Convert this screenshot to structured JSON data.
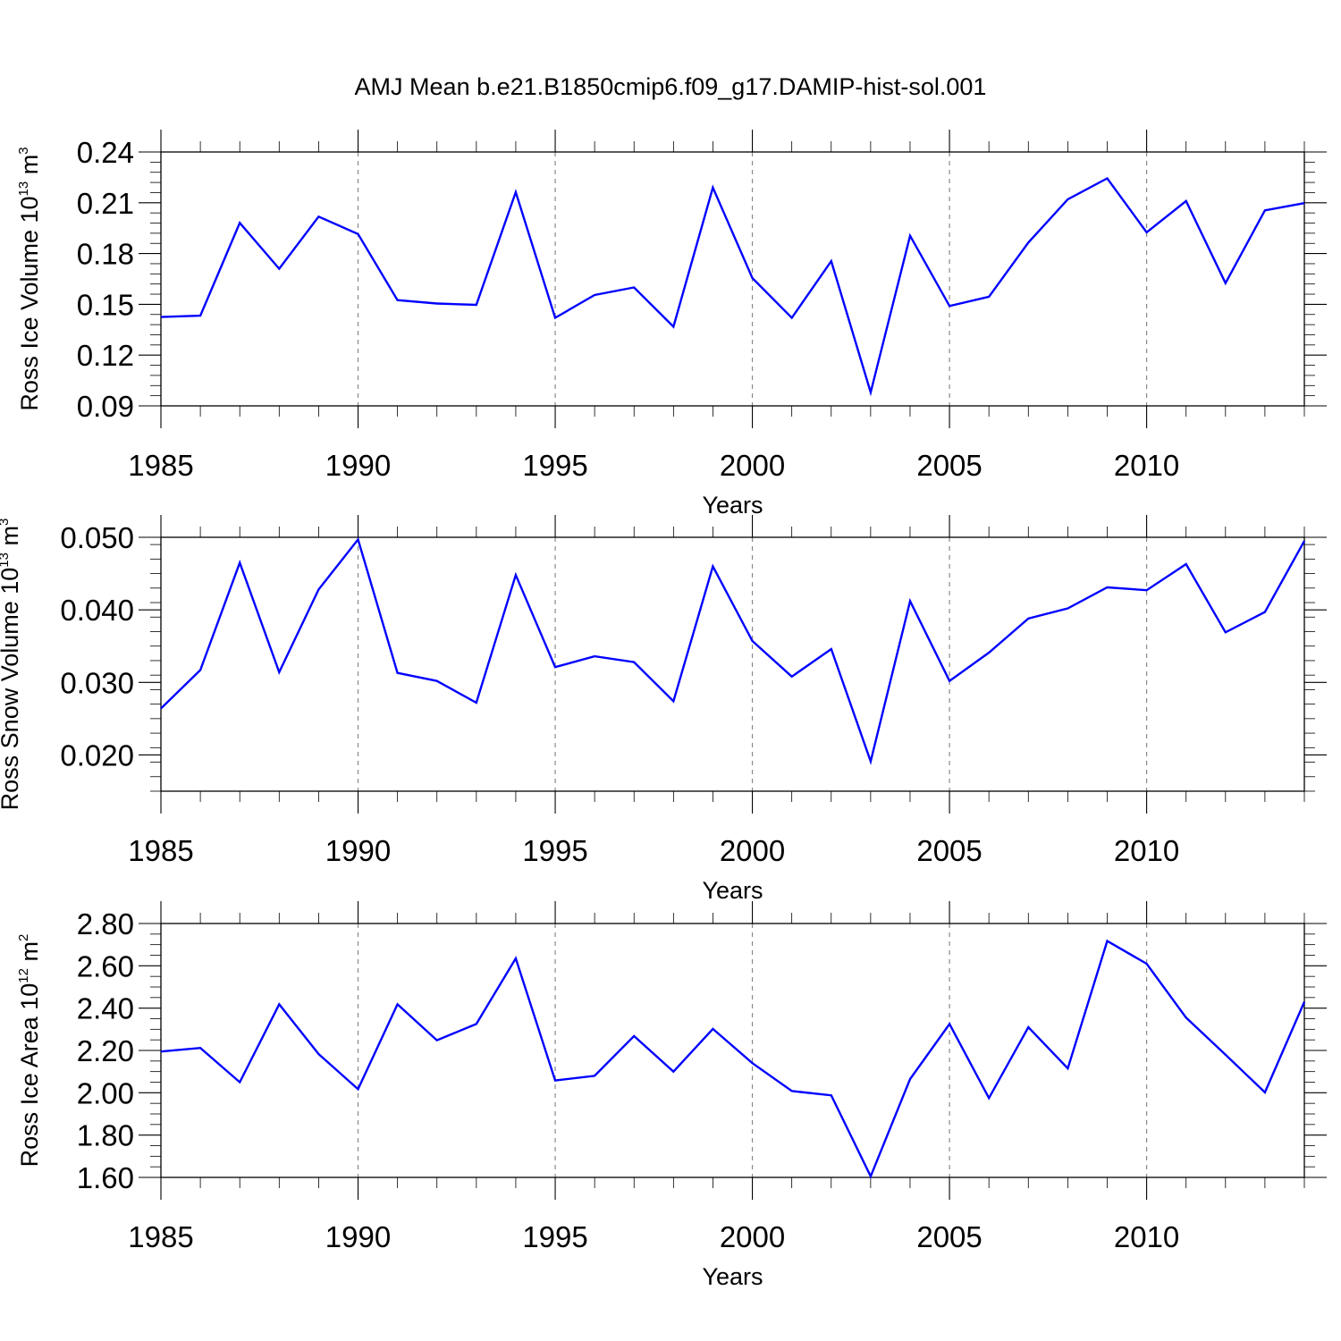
{
  "chart_data": [
    {
      "type": "line",
      "title": "AMJ Mean b.e21.B1850cmip6.f09_g17.DAMIP-hist-sol.001",
      "xlabel": "Years",
      "ylabel": {
        "pre": "Ross Ice Volume 10",
        "exp": "13",
        "unit": " m",
        "unit_exp": "3"
      },
      "xlim": [
        1985,
        2014
      ],
      "ylim": [
        0.09,
        0.24
      ],
      "xticks": [
        "1985",
        "1990",
        "1995",
        "2000",
        "2005",
        "2010"
      ],
      "yticks": [
        "0.09",
        "0.12",
        "0.15",
        "0.18",
        "0.21",
        "0.24"
      ],
      "series": [
        {
          "name": "Ross Ice Volume",
          "color": "#0000ff",
          "x": [
            1985,
            1986,
            1987,
            1988,
            1989,
            1990,
            1991,
            1992,
            1993,
            1994,
            1995,
            1996,
            1997,
            1998,
            1999,
            2000,
            2001,
            2002,
            2003,
            2004,
            2005,
            2006,
            2007,
            2008,
            2009,
            2010,
            2011,
            2012,
            2013,
            2014
          ],
          "values": [
            0.1425,
            0.1433,
            0.1981,
            0.171,
            0.2018,
            0.1915,
            0.1525,
            0.1505,
            0.1497,
            0.2163,
            0.142,
            0.1555,
            0.16,
            0.1368,
            0.219,
            0.1655,
            0.142,
            0.1755,
            0.098,
            0.1905,
            0.149,
            0.1545,
            0.1865,
            0.212,
            0.2244,
            0.1925,
            0.211,
            0.1625,
            0.2055,
            0.2098
          ]
        }
      ]
    },
    {
      "type": "line",
      "xlabel": "Years",
      "ylabel": {
        "pre": "Ross Snow Volume 10",
        "exp": "13",
        "unit": " m",
        "unit_exp": "3"
      },
      "xlim": [
        1985,
        2014
      ],
      "ylim": [
        0.015,
        0.05
      ],
      "xticks": [
        "1985",
        "1990",
        "1995",
        "2000",
        "2005",
        "2010"
      ],
      "yticks": [
        "0.020",
        "0.030",
        "0.040",
        "0.050"
      ],
      "series": [
        {
          "name": "Ross Snow Volume",
          "color": "#0000ff",
          "x": [
            1985,
            1986,
            1987,
            1988,
            1989,
            1990,
            1991,
            1992,
            1993,
            1994,
            1995,
            1996,
            1997,
            1998,
            1999,
            2000,
            2001,
            2002,
            2003,
            2004,
            2005,
            2006,
            2007,
            2008,
            2009,
            2010,
            2011,
            2012,
            2013,
            2014
          ],
          "values": [
            0.0264,
            0.0317,
            0.0465,
            0.0314,
            0.0428,
            0.0497,
            0.0313,
            0.0302,
            0.0272,
            0.0448,
            0.0321,
            0.0336,
            0.0328,
            0.0274,
            0.046,
            0.0357,
            0.0308,
            0.0346,
            0.0191,
            0.0412,
            0.0302,
            0.0341,
            0.0388,
            0.0402,
            0.0431,
            0.0427,
            0.0463,
            0.0369,
            0.0397,
            0.0495
          ]
        }
      ]
    },
    {
      "type": "line",
      "xlabel": "Years",
      "ylabel": {
        "pre": "Ross Ice Area 10",
        "exp": "12",
        "unit": " m",
        "unit_exp": "2"
      },
      "xlim": [
        1985,
        2014
      ],
      "ylim": [
        1.6,
        2.8
      ],
      "xticks": [
        "1985",
        "1990",
        "1995",
        "2000",
        "2005",
        "2010"
      ],
      "yticks": [
        "1.60",
        "1.80",
        "2.00",
        "2.20",
        "2.40",
        "2.60",
        "2.80"
      ],
      "series": [
        {
          "name": "Ross Ice Area",
          "color": "#0000ff",
          "x": [
            1985,
            1986,
            1987,
            1988,
            1989,
            1990,
            1991,
            1992,
            1993,
            1994,
            1995,
            1996,
            1997,
            1998,
            1999,
            2000,
            2001,
            2002,
            2003,
            2004,
            2005,
            2006,
            2007,
            2008,
            2009,
            2010,
            2011,
            2012,
            2013,
            2014
          ],
          "values": [
            2.195,
            2.212,
            2.05,
            2.418,
            2.183,
            2.017,
            2.418,
            2.248,
            2.325,
            2.635,
            2.058,
            2.08,
            2.268,
            2.1,
            2.302,
            2.14,
            2.008,
            1.988,
            1.605,
            2.065,
            2.325,
            1.975,
            2.31,
            2.115,
            2.717,
            2.61,
            2.355,
            2.18,
            2.002,
            2.43
          ]
        }
      ]
    }
  ]
}
